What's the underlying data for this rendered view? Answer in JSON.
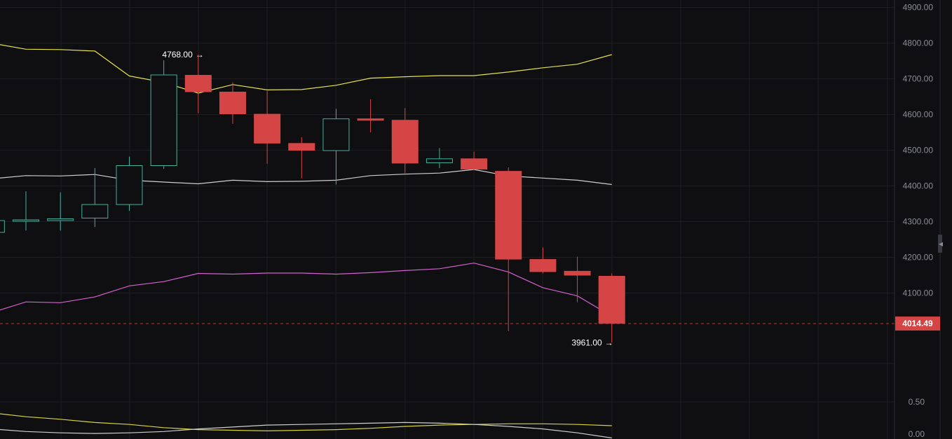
{
  "colors": {
    "background": "#0f0f11",
    "grid": "#1e1f24",
    "axis_text": "#8a8d94",
    "up": "#3fb39e",
    "down": "#d64545",
    "bb_upper": "#e5e24a",
    "bb_middle": "#cfcfcf",
    "bb_lower": "#d45fd0",
    "osc_1": "#d9d33a",
    "osc_2": "#cfcfcf"
  },
  "chart_data": {
    "type": "candlestick",
    "y_axis": {
      "range": [
        3800,
        4920
      ],
      "ticks": [
        "4900.00",
        "4800.00",
        "4700.00",
        "4600.00",
        "4500.00",
        "4400.00",
        "4300.00",
        "4200.00",
        "4100.00"
      ]
    },
    "candles": [
      {
        "o": 4270,
        "h": 4303,
        "l": 4270,
        "c": 4303
      },
      {
        "o": 4302,
        "h": 4385,
        "l": 4275,
        "c": 4305
      },
      {
        "o": 4303,
        "h": 4382,
        "l": 4275,
        "c": 4308
      },
      {
        "o": 4310,
        "h": 4450,
        "l": 4285,
        "c": 4348
      },
      {
        "o": 4348,
        "h": 4482,
        "l": 4330,
        "c": 4457
      },
      {
        "o": 4457,
        "h": 4752,
        "l": 4448,
        "c": 4711
      },
      {
        "o": 4711,
        "h": 4768,
        "l": 4604,
        "c": 4663
      },
      {
        "o": 4664,
        "h": 4690,
        "l": 4574,
        "c": 4601
      },
      {
        "o": 4602,
        "h": 4666,
        "l": 4462,
        "c": 4519
      },
      {
        "o": 4520,
        "h": 4537,
        "l": 4421,
        "c": 4499
      },
      {
        "o": 4499,
        "h": 4616,
        "l": 4404,
        "c": 4588
      },
      {
        "o": 4589,
        "h": 4643,
        "l": 4550,
        "c": 4583
      },
      {
        "o": 4585,
        "h": 4618,
        "l": 4436,
        "c": 4463
      },
      {
        "o": 4465,
        "h": 4506,
        "l": 4450,
        "c": 4476
      },
      {
        "o": 4477,
        "h": 4496,
        "l": 4444,
        "c": 4446
      },
      {
        "o": 4442,
        "h": 4452,
        "l": 3993,
        "c": 4194
      },
      {
        "o": 4195,
        "h": 4228,
        "l": 4155,
        "c": 4159
      },
      {
        "o": 4162,
        "h": 4202,
        "l": 4074,
        "c": 4149
      },
      {
        "o": 4148,
        "h": 4155,
        "l": 3961,
        "c": 4014
      }
    ],
    "bollinger": {
      "upper": [
        4800,
        4783,
        4782,
        4778,
        4708,
        4690,
        4660,
        4684,
        4669,
        4670,
        4682,
        4702,
        4706,
        4709,
        4709,
        4719,
        4731,
        4741,
        4768
      ],
      "middle": [
        4420,
        4429,
        4428,
        4432,
        4416,
        4411,
        4406,
        4416,
        4412,
        4413,
        4416,
        4429,
        4433,
        4436,
        4446,
        4428,
        4422,
        4416,
        4404
      ],
      "lower": [
        4045,
        4075,
        4073,
        4089,
        4120,
        4132,
        4155,
        4153,
        4156,
        4156,
        4153,
        4157,
        4163,
        4168,
        4184,
        4159,
        4115,
        4092,
        4035
      ]
    },
    "high_marker": {
      "label": "4768.00",
      "value": 4768,
      "candle": 6
    },
    "low_marker": {
      "label": "3961.00",
      "value": 3961,
      "candle": 18
    },
    "current_price": {
      "label": "4014.49",
      "value": 4014.49
    },
    "oscillator": {
      "range": [
        0,
        1.2
      ],
      "ticks": [
        "0.50",
        "0.00"
      ],
      "line1": [
        0.33,
        0.27,
        0.23,
        0.18,
        0.15,
        0.1,
        0.07,
        0.06,
        0.05,
        0.06,
        0.07,
        0.09,
        0.12,
        0.14,
        0.15,
        0.16,
        0.16,
        0.15,
        0.13
      ],
      "line2": [
        0.08,
        0.04,
        0.02,
        0.01,
        0.02,
        0.04,
        0.08,
        0.11,
        0.14,
        0.15,
        0.16,
        0.17,
        0.18,
        0.17,
        0.15,
        0.12,
        0.08,
        0.02,
        -0.06
      ]
    }
  }
}
